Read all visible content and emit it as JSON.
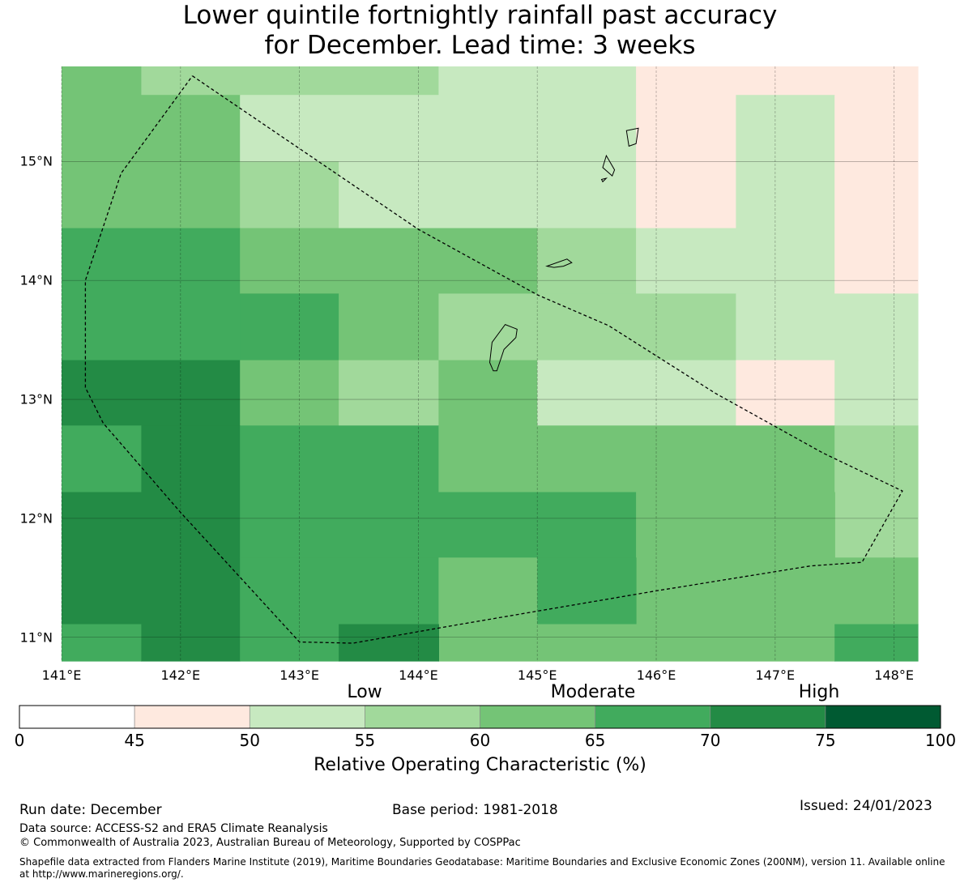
{
  "title": {
    "line1": "Lower quintile fortnightly rainfall past accuracy",
    "line2": "for December. Lead time: 3 weeks"
  },
  "map": {
    "lon_min": 141.0,
    "lon_max": 148.2,
    "lat_min": 10.8,
    "lat_max": 15.8,
    "x_ticks": [
      "141°E",
      "142°E",
      "143°E",
      "144°E",
      "145°E",
      "146°E",
      "147°E",
      "148°E"
    ],
    "x_tick_values": [
      141,
      142,
      143,
      144,
      145,
      146,
      147,
      148
    ],
    "y_ticks": [
      "15°N",
      "14°N",
      "13°N",
      "12°N",
      "11°N"
    ],
    "y_tick_values": [
      15,
      14,
      13,
      12,
      11
    ],
    "colors": {
      "45-50": "#fee9df",
      "50-55": "#c7e9c0",
      "55-60": "#a1d99b",
      "60-65": "#74c476",
      "65-70": "#41ab5d",
      "70-75": "#238b45"
    },
    "cells": [
      {
        "lon": [
          141.0,
          141.67
        ],
        "lat": [
          15.56,
          15.8
        ],
        "cls": "60-65"
      },
      {
        "lon": [
          141.67,
          144.17
        ],
        "lat": [
          15.56,
          15.8
        ],
        "cls": "55-60"
      },
      {
        "lon": [
          144.17,
          145.83
        ],
        "lat": [
          15.56,
          15.8
        ],
        "cls": "50-55"
      },
      {
        "lon": [
          145.83,
          148.2
        ],
        "lat": [
          15.56,
          15.8
        ],
        "cls": "45-50"
      },
      {
        "lon": [
          141.0,
          142.5
        ],
        "lat": [
          14.44,
          15.56
        ],
        "cls": "60-65"
      },
      {
        "lon": [
          142.5,
          145.83
        ],
        "lat": [
          15.0,
          15.56
        ],
        "cls": "50-55"
      },
      {
        "lon": [
          142.5,
          143.33
        ],
        "lat": [
          14.44,
          15.0
        ],
        "cls": "55-60"
      },
      {
        "lon": [
          143.33,
          145.83
        ],
        "lat": [
          14.44,
          15.0
        ],
        "cls": "50-55"
      },
      {
        "lon": [
          145.83,
          146.67
        ],
        "lat": [
          14.44,
          15.56
        ],
        "cls": "45-50"
      },
      {
        "lon": [
          146.67,
          147.5
        ],
        "lat": [
          14.44,
          15.56
        ],
        "cls": "50-55"
      },
      {
        "lon": [
          147.5,
          148.2
        ],
        "lat": [
          14.44,
          15.56
        ],
        "cls": "45-50"
      },
      {
        "lon": [
          141.0,
          142.5
        ],
        "lat": [
          13.33,
          14.44
        ],
        "cls": "65-70"
      },
      {
        "lon": [
          142.5,
          145.0
        ],
        "lat": [
          13.89,
          14.44
        ],
        "cls": "60-65"
      },
      {
        "lon": [
          145.0,
          145.83
        ],
        "lat": [
          13.89,
          14.44
        ],
        "cls": "55-60"
      },
      {
        "lon": [
          145.83,
          147.5
        ],
        "lat": [
          13.89,
          14.44
        ],
        "cls": "50-55"
      },
      {
        "lon": [
          147.5,
          148.2
        ],
        "lat": [
          13.89,
          14.44
        ],
        "cls": "45-50"
      },
      {
        "lon": [
          142.5,
          143.33
        ],
        "lat": [
          13.33,
          13.89
        ],
        "cls": "65-70"
      },
      {
        "lon": [
          143.33,
          144.17
        ],
        "lat": [
          13.33,
          13.89
        ],
        "cls": "60-65"
      },
      {
        "lon": [
          144.17,
          146.67
        ],
        "lat": [
          13.33,
          13.89
        ],
        "cls": "55-60"
      },
      {
        "lon": [
          146.67,
          148.2
        ],
        "lat": [
          13.33,
          13.89
        ],
        "cls": "50-55"
      },
      {
        "lon": [
          141.0,
          142.5
        ],
        "lat": [
          12.78,
          13.33
        ],
        "cls": "70-75"
      },
      {
        "lon": [
          142.5,
          143.33
        ],
        "lat": [
          12.78,
          13.33
        ],
        "cls": "60-65"
      },
      {
        "lon": [
          143.33,
          144.17
        ],
        "lat": [
          12.78,
          13.33
        ],
        "cls": "55-60"
      },
      {
        "lon": [
          144.17,
          145.0
        ],
        "lat": [
          12.78,
          13.33
        ],
        "cls": "60-65"
      },
      {
        "lon": [
          145.0,
          146.67
        ],
        "lat": [
          12.78,
          13.33
        ],
        "cls": "50-55"
      },
      {
        "lon": [
          146.67,
          147.5
        ],
        "lat": [
          12.78,
          13.33
        ],
        "cls": "45-50"
      },
      {
        "lon": [
          147.5,
          148.2
        ],
        "lat": [
          12.78,
          13.33
        ],
        "cls": "50-55"
      },
      {
        "lon": [
          141.0,
          141.67
        ],
        "lat": [
          12.22,
          12.78
        ],
        "cls": "65-70"
      },
      {
        "lon": [
          141.67,
          142.5
        ],
        "lat": [
          12.22,
          12.78
        ],
        "cls": "70-75"
      },
      {
        "lon": [
          142.5,
          144.17
        ],
        "lat": [
          12.22,
          12.78
        ],
        "cls": "65-70"
      },
      {
        "lon": [
          144.17,
          147.5
        ],
        "lat": [
          12.22,
          12.78
        ],
        "cls": "60-65"
      },
      {
        "lon": [
          147.5,
          148.2
        ],
        "lat": [
          11.67,
          12.78
        ],
        "cls": "55-60"
      },
      {
        "lon": [
          141.0,
          142.5
        ],
        "lat": [
          11.11,
          12.22
        ],
        "cls": "70-75"
      },
      {
        "lon": [
          142.5,
          145.83
        ],
        "lat": [
          11.67,
          12.22
        ],
        "cls": "65-70"
      },
      {
        "lon": [
          145.83,
          147.5
        ],
        "lat": [
          11.11,
          12.22
        ],
        "cls": "60-65"
      },
      {
        "lon": [
          142.5,
          144.17
        ],
        "lat": [
          11.11,
          11.67
        ],
        "cls": "65-70"
      },
      {
        "lon": [
          144.17,
          145.0
        ],
        "lat": [
          10.8,
          11.67
        ],
        "cls": "60-65"
      },
      {
        "lon": [
          145.0,
          145.83
        ],
        "lat": [
          11.11,
          11.67
        ],
        "cls": "65-70"
      },
      {
        "lon": [
          147.5,
          148.2
        ],
        "lat": [
          11.11,
          11.67
        ],
        "cls": "60-65"
      },
      {
        "lon": [
          141.0,
          141.67
        ],
        "lat": [
          10.8,
          11.11
        ],
        "cls": "65-70"
      },
      {
        "lon": [
          141.67,
          142.5
        ],
        "lat": [
          10.8,
          11.11
        ],
        "cls": "70-75"
      },
      {
        "lon": [
          142.5,
          143.33
        ],
        "lat": [
          10.8,
          11.11
        ],
        "cls": "65-70"
      },
      {
        "lon": [
          143.33,
          144.17
        ],
        "lat": [
          10.8,
          11.11
        ],
        "cls": "70-75"
      },
      {
        "lon": [
          145.0,
          147.5
        ],
        "lat": [
          10.8,
          11.11
        ],
        "cls": "60-65"
      },
      {
        "lon": [
          147.5,
          148.2
        ],
        "lat": [
          10.8,
          11.11
        ],
        "cls": "65-70"
      }
    ],
    "eez_boundary": [
      [
        142.1,
        15.72
      ],
      [
        144.0,
        14.43
      ],
      [
        145.0,
        13.88
      ],
      [
        145.6,
        13.62
      ],
      [
        146.5,
        13.05
      ],
      [
        147.4,
        12.55
      ],
      [
        148.07,
        12.23
      ],
      [
        147.73,
        11.63
      ],
      [
        147.3,
        11.6
      ],
      [
        146.0,
        11.39
      ],
      [
        144.3,
        11.1
      ],
      [
        143.45,
        10.95
      ],
      [
        143.0,
        10.96
      ],
      [
        142.0,
        12.05
      ],
      [
        141.35,
        12.8
      ],
      [
        141.2,
        13.1
      ],
      [
        141.2,
        14.0
      ],
      [
        141.5,
        14.9
      ],
      [
        142.1,
        15.72
      ]
    ],
    "islands": [
      [
        [
          144.62,
          13.48
        ],
        [
          144.73,
          13.63
        ],
        [
          144.83,
          13.59
        ],
        [
          144.82,
          13.52
        ],
        [
          144.72,
          13.42
        ],
        [
          144.66,
          13.24
        ],
        [
          144.63,
          13.24
        ],
        [
          144.6,
          13.31
        ],
        [
          144.62,
          13.48
        ]
      ],
      [
        [
          145.08,
          14.12
        ],
        [
          145.25,
          14.18
        ],
        [
          145.29,
          14.15
        ],
        [
          145.22,
          14.12
        ],
        [
          145.14,
          14.11
        ],
        [
          145.08,
          14.12
        ]
      ],
      [
        [
          145.58,
          15.05
        ],
        [
          145.65,
          14.93
        ],
        [
          145.63,
          14.88
        ],
        [
          145.55,
          14.95
        ],
        [
          145.58,
          15.05
        ]
      ],
      [
        [
          145.75,
          15.26
        ],
        [
          145.85,
          15.28
        ],
        [
          145.83,
          15.15
        ],
        [
          145.77,
          15.13
        ],
        [
          145.75,
          15.26
        ]
      ],
      [
        [
          145.54,
          14.85
        ],
        [
          145.58,
          14.86
        ],
        [
          145.55,
          14.83
        ],
        [
          145.54,
          14.85
        ]
      ]
    ]
  },
  "categories": {
    "low": "Low",
    "moderate": "Moderate",
    "high": "High"
  },
  "colorbar": {
    "bounds": [
      0,
      45,
      50,
      55,
      60,
      65,
      70,
      75,
      100
    ],
    "tick_labels": [
      "0",
      "45",
      "50",
      "55",
      "60",
      "65",
      "70",
      "75",
      "100"
    ],
    "colors": [
      "#ffffff",
      "#fee9df",
      "#c7e9c0",
      "#a1d99b",
      "#74c476",
      "#41ab5d",
      "#238b45",
      "#005a32"
    ],
    "title": "Relative Operating Characteristic (%)"
  },
  "footer": {
    "run_date": "Run date: December",
    "base_period": "Base period: 1981-2018",
    "issued": "Issued: 24/01/2023",
    "data_source": "Data source: ACCESS-S2 and ERA5 Climate Reanalysis",
    "copyright": "© Commonwealth of Australia 2023, Australian Bureau of Meteorology, Supported by COSPPac",
    "shapefile": "Shapefile data extracted from Flanders Marine Institute (2019), Maritime Boundaries Geodatabase: Maritime Boundaries and Exclusive Economic Zones (200NM), version 11. Available online at http://www.marineregions.org/."
  }
}
